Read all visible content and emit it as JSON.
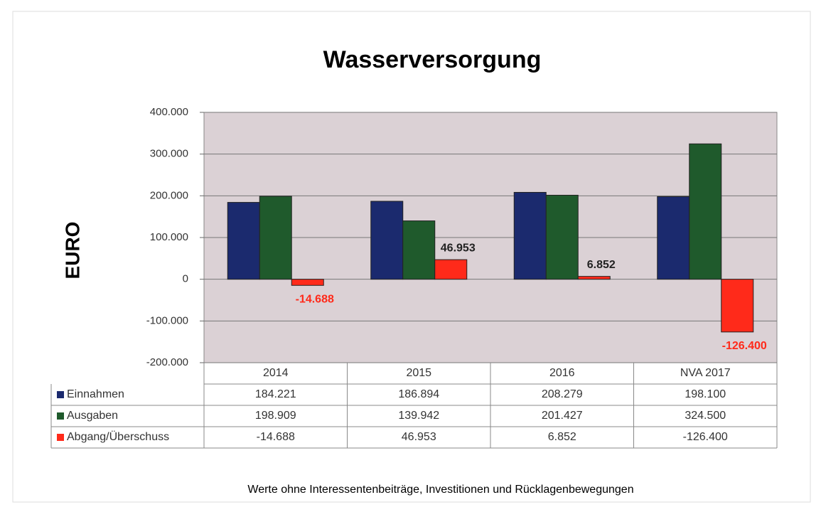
{
  "chart_data": {
    "type": "bar",
    "title": "Wasserversorgung",
    "y_label": "EURO",
    "footnote": "Werte ohne Interessentenbeiträge, Investitionen und Rücklagenbewegungen",
    "categories": [
      "2014",
      "2015",
      "2016",
      "NVA 2017"
    ],
    "series": [
      {
        "name": "Einnahmen",
        "color": "#1b2a6e",
        "values": [
          184221,
          186894,
          208279,
          198100
        ],
        "value_labels": [
          "184.221",
          "186.894",
          "208.279",
          "198.100"
        ]
      },
      {
        "name": "Ausgaben",
        "color": "#1f5a2c",
        "values": [
          198909,
          139942,
          201427,
          324500
        ],
        "value_labels": [
          "198.909",
          "139.942",
          "201.427",
          "324.500"
        ]
      },
      {
        "name": "Abgang/Überschuss",
        "color": "#ff2a1a",
        "values": [
          -14688,
          46953,
          6852,
          -126400
        ],
        "value_labels": [
          "-14.688",
          "46.953",
          "6.852",
          "-126.400"
        ]
      }
    ],
    "data_labels_series": 2,
    "ylim": [
      -200000,
      400000
    ],
    "yticks": [
      {
        "value": -200000,
        "label": "-200.000"
      },
      {
        "value": -100000,
        "label": "-100.000"
      },
      0,
      {
        "value": 100000,
        "label": "100.000"
      },
      {
        "value": 200000,
        "label": "200.000"
      },
      {
        "value": 300000,
        "label": "300.000"
      },
      {
        "value": 400000,
        "label": "400.000"
      }
    ],
    "grid": true
  }
}
